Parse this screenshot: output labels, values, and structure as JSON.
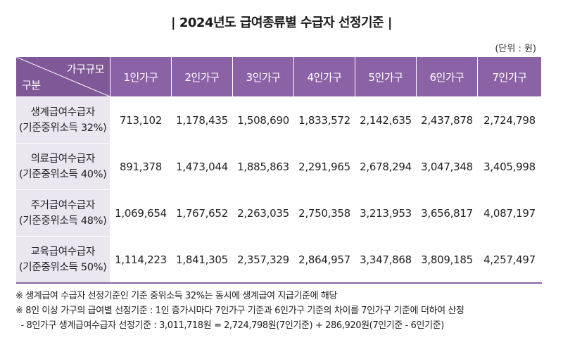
{
  "title": "| 2024년도 급여종류별 수급자 선정기준 |",
  "unit": "(단위 : 원)",
  "table": {
    "corner_top": "가구규모",
    "corner_bottom": "구분",
    "columns": [
      "1인가구",
      "2인가구",
      "3인가구",
      "4인가구",
      "5인가구",
      "6인가구",
      "7인가구"
    ],
    "rows": [
      {
        "name": "생계급여수급자",
        "sub": "(기준중위소득 32%)",
        "values": [
          "713,102",
          "1,178,435",
          "1,508,690",
          "1,833,572",
          "2,142,635",
          "2,437,878",
          "2,724,798"
        ]
      },
      {
        "name": "의료급여수급자",
        "sub": "(기준중위소득 40%)",
        "values": [
          "891,378",
          "1,473,044",
          "1,885,863",
          "2,291,965",
          "2,678,294",
          "3,047,348",
          "3,405,998"
        ]
      },
      {
        "name": "주거급여수급자",
        "sub": "(기준중위소득 48%)",
        "values": [
          "1,069,654",
          "1,767,652",
          "2,263,035",
          "2,750,358",
          "3,213,953",
          "3,656,817",
          "4,087,197"
        ]
      },
      {
        "name": "교육급여수급자",
        "sub": "(기준중위소득 50%)",
        "values": [
          "1,114,223",
          "1,841,305",
          "2,357,329",
          "2,864,957",
          "3,347,868",
          "3,809,185",
          "4,257,497"
        ]
      }
    ]
  },
  "notes": [
    "※ 생계급여 수급자 선정기준인 기준 중위소득 32%는 동시에 생계급여 지급기준에 해당",
    "※ 8인 이상 가구의 급여별 선정기준 : 1인 증가시마다 7인가구 기준과 6인가구 기준의 차이를 7인가구 기준에 더하여 산정",
    "  - 8인가구 생계급여수급자 선정기준 : 3,011,718원 = 2,724,798원(7인기준) + 286,920원(7인기준 - 6인기준)"
  ],
  "colors": {
    "header_bg": "#8c62a6",
    "rowhead_bg": "#ece6f0"
  }
}
